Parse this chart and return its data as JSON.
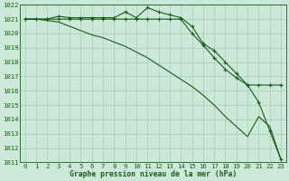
{
  "title": "Graphe pression niveau de la mer (hPa)",
  "bg_color": "#cce8d8",
  "grid_color": "#aaccbb",
  "line_color": "#1a5c1a",
  "xlim_min": -0.5,
  "xlim_max": 23.5,
  "ylim_min": 1011,
  "ylim_max": 1022,
  "xticks": [
    0,
    1,
    2,
    3,
    4,
    5,
    6,
    7,
    8,
    9,
    10,
    11,
    12,
    13,
    14,
    15,
    16,
    17,
    18,
    19,
    20,
    21,
    22,
    23
  ],
  "yticks": [
    1011,
    1012,
    1013,
    1014,
    1015,
    1016,
    1017,
    1018,
    1019,
    1020,
    1021,
    1022
  ],
  "series1_x": [
    0,
    1,
    2,
    3,
    4,
    5,
    6,
    7,
    8,
    9,
    10,
    11,
    12,
    13,
    14,
    15,
    16,
    17,
    18,
    19,
    20,
    21,
    22,
    23
  ],
  "series1_y": [
    1021.0,
    1021.0,
    1021.0,
    1021.2,
    1021.1,
    1021.1,
    1021.1,
    1021.1,
    1021.1,
    1021.5,
    1021.1,
    1021.8,
    1021.5,
    1021.3,
    1021.1,
    1020.5,
    1019.3,
    1018.8,
    1018.0,
    1017.2,
    1016.4,
    1015.2,
    1013.2,
    1011.2
  ],
  "series2_x": [
    0,
    1,
    2,
    3,
    4,
    5,
    6,
    7,
    8,
    9,
    10,
    11,
    12,
    13,
    14,
    15,
    16,
    17,
    18,
    19,
    20,
    21,
    22,
    23
  ],
  "series2_y": [
    1021.0,
    1021.0,
    1021.0,
    1021.0,
    1021.0,
    1021.0,
    1021.0,
    1021.0,
    1021.0,
    1021.0,
    1021.0,
    1021.0,
    1021.0,
    1021.0,
    1021.0,
    1020.0,
    1019.2,
    1018.3,
    1017.5,
    1016.9,
    1016.4,
    1016.4,
    1016.4,
    1016.4
  ],
  "series3_x": [
    0,
    1,
    2,
    3,
    4,
    5,
    6,
    7,
    8,
    9,
    10,
    11,
    12,
    13,
    14,
    15,
    16,
    17,
    18,
    19,
    20,
    21,
    22,
    23
  ],
  "series3_y": [
    1021.0,
    1021.0,
    1020.9,
    1020.8,
    1020.5,
    1020.2,
    1019.9,
    1019.7,
    1019.4,
    1019.1,
    1018.7,
    1018.3,
    1017.8,
    1017.3,
    1016.8,
    1016.3,
    1015.7,
    1015.0,
    1014.2,
    1013.5,
    1012.8,
    1014.2,
    1013.5,
    1011.2
  ]
}
